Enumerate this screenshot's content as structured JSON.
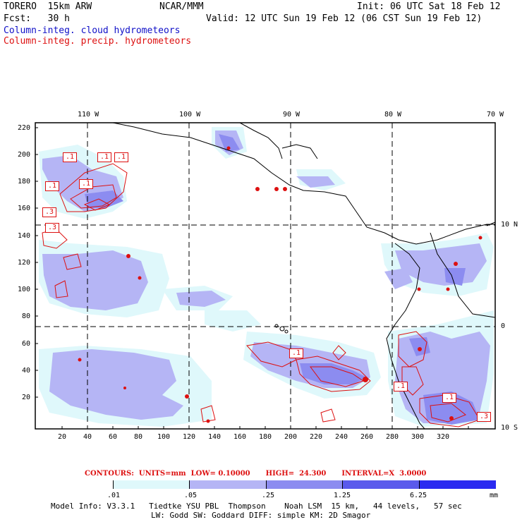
{
  "header": {
    "model": "TORERO  15km ARW",
    "org": "NCAR/MMM",
    "init": "Init: 06 UTC Sat 18 Feb 12",
    "fcst": "Fcst:   30 h",
    "valid": "Valid: 12 UTC Sun 19 Feb 12 (06 CST Sun 19 Feb 12)"
  },
  "legend": {
    "cloud": "Column-integ. cloud hydrometeors",
    "precip": "Column-integ. precip. hydrometeors"
  },
  "axes": {
    "top_lon": [
      "110 W",
      "100 W",
      "90 W",
      "80 W",
      "70 W"
    ],
    "right_lat": [
      "10 N",
      "0",
      "10 S"
    ],
    "left_y": [
      "220",
      "200",
      "180",
      "160",
      "140",
      "120",
      "100",
      "80",
      "60",
      "40",
      "20"
    ],
    "bottom_x": [
      "20",
      "40",
      "60",
      "80",
      "100",
      "120",
      "140",
      "160",
      "180",
      "200",
      "220",
      "240",
      "260",
      "280",
      "300",
      "320"
    ]
  },
  "contours": {
    "label": "CONTOURS:  UNITS=mm  LOW= 0.10000",
    "high": "HIGH=  24.300",
    "interval": "INTERVAL=X  3.0000"
  },
  "colorbar": {
    "colors": [
      "#ffffff",
      "#dff8fb",
      "#b5b5f5",
      "#8c8cf0",
      "#5a5aec",
      "#2a2af0"
    ],
    "labels": [
      ".01",
      ".05",
      ".25",
      "1.25",
      "6.25"
    ],
    "units": "mm"
  },
  "info": {
    "line1": "Model Info: V3.3.1   Tiedtke YSU PBL  Thompson    Noah LSM  15 km,   44 levels,   57 sec",
    "line2": "LW: Godd SW: Goddard DIFF: simple KM: 2D Smagor"
  },
  "map_boxes": [
    {
      "label": ".1"
    },
    {
      "label": ".1"
    },
    {
      "label": ".1"
    },
    {
      "label": ".1"
    },
    {
      "label": ".1"
    },
    {
      "label": ".3"
    },
    {
      "label": ".3"
    },
    {
      "label": ".1"
    },
    {
      "label": ".1"
    },
    {
      "label": ".1"
    },
    {
      "label": ".3"
    }
  ]
}
